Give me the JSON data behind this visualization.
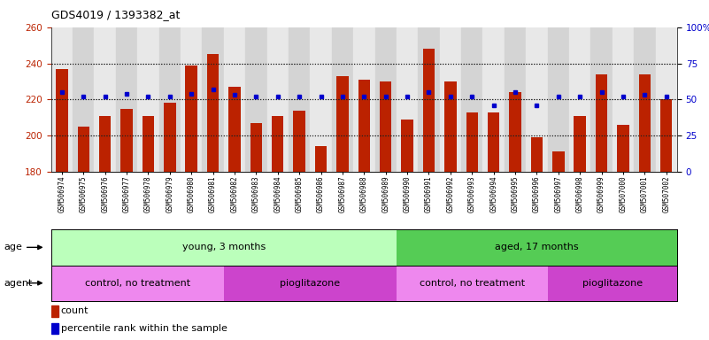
{
  "title": "GDS4019 / 1393382_at",
  "samples": [
    "GSM506974",
    "GSM506975",
    "GSM506976",
    "GSM506977",
    "GSM506978",
    "GSM506979",
    "GSM506980",
    "GSM506981",
    "GSM506982",
    "GSM506983",
    "GSM506984",
    "GSM506985",
    "GSM506986",
    "GSM506987",
    "GSM506988",
    "GSM506989",
    "GSM506990",
    "GSM506991",
    "GSM506992",
    "GSM506993",
    "GSM506994",
    "GSM506995",
    "GSM506996",
    "GSM506997",
    "GSM506998",
    "GSM506999",
    "GSM507000",
    "GSM507001",
    "GSM507002"
  ],
  "count": [
    237,
    205,
    211,
    215,
    211,
    218,
    239,
    245,
    227,
    207,
    211,
    214,
    194,
    233,
    231,
    230,
    209,
    248,
    230,
    213,
    213,
    224,
    199,
    191,
    211,
    234,
    206,
    234,
    220
  ],
  "percentile": [
    55,
    52,
    52,
    54,
    52,
    52,
    54,
    57,
    53,
    52,
    52,
    52,
    52,
    52,
    52,
    52,
    52,
    55,
    52,
    52,
    46,
    55,
    46,
    52,
    52,
    55,
    52,
    53,
    52
  ],
  "ylim_left": [
    180,
    260
  ],
  "ylim_right": [
    0,
    100
  ],
  "yticks_left": [
    180,
    200,
    220,
    240,
    260
  ],
  "yticks_right": [
    0,
    25,
    50,
    75,
    100
  ],
  "bar_color": "#bb2200",
  "dot_color": "#0000cc",
  "bg_color": "#ffffff",
  "col_bg_even": "#e8e8e8",
  "col_bg_odd": "#d4d4d4",
  "gridline_color": "#222222",
  "age_groups": [
    {
      "label": "young, 3 months",
      "start": 0,
      "end": 16,
      "color": "#bbffbb"
    },
    {
      "label": "aged, 17 months",
      "start": 16,
      "end": 29,
      "color": "#55cc55"
    }
  ],
  "agent_groups": [
    {
      "label": "control, no treatment",
      "start": 0,
      "end": 8,
      "color": "#ee88ee"
    },
    {
      "label": "pioglitazone",
      "start": 8,
      "end": 16,
      "color": "#cc44cc"
    },
    {
      "label": "control, no treatment",
      "start": 16,
      "end": 23,
      "color": "#ee88ee"
    },
    {
      "label": "pioglitazone",
      "start": 23,
      "end": 29,
      "color": "#cc44cc"
    }
  ],
  "legend_items": [
    {
      "label": "count",
      "color": "#bb2200"
    },
    {
      "label": "percentile rank within the sample",
      "color": "#0000cc"
    }
  ]
}
